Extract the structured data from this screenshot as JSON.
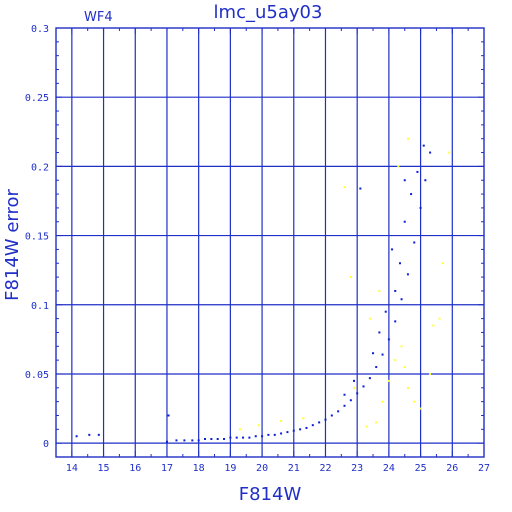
{
  "colors": {
    "axis": "#1f2fc7",
    "primary_points": "#0b1fd6",
    "secondary_points": "#ffff33"
  },
  "chart_data": {
    "type": "scatter",
    "title": "lmc_u5ay03",
    "subtitle": "WF4",
    "xlabel": "F814W",
    "ylabel": "F814W error",
    "xlim": [
      13.5,
      27
    ],
    "ylim": [
      -0.01,
      0.3
    ],
    "grid": true,
    "x_ticks": [
      14,
      15,
      16,
      17,
      18,
      19,
      20,
      21,
      22,
      23,
      24,
      25,
      26,
      27
    ],
    "y_ticks": [
      0,
      0.05,
      0.1,
      0.15,
      0.2,
      0.25,
      0.3
    ],
    "series": [
      {
        "color": "#0b1fd6",
        "points": [
          [
            14.15,
            0.005
          ],
          [
            14.55,
            0.006
          ],
          [
            14.85,
            0.006
          ],
          [
            17.05,
            0.02
          ],
          [
            17.0,
            0.001
          ],
          [
            17.3,
            0.002
          ],
          [
            17.55,
            0.002
          ],
          [
            17.8,
            0.002
          ],
          [
            18.0,
            0.002
          ],
          [
            18.2,
            0.003
          ],
          [
            18.4,
            0.003
          ],
          [
            18.6,
            0.003
          ],
          [
            18.8,
            0.003
          ],
          [
            19.0,
            0.004
          ],
          [
            19.2,
            0.004
          ],
          [
            19.4,
            0.004
          ],
          [
            19.6,
            0.004
          ],
          [
            19.8,
            0.005
          ],
          [
            20.0,
            0.005
          ],
          [
            20.2,
            0.006
          ],
          [
            20.4,
            0.006
          ],
          [
            20.6,
            0.007
          ],
          [
            20.8,
            0.008
          ],
          [
            21.0,
            0.009
          ],
          [
            21.2,
            0.01
          ],
          [
            21.4,
            0.011
          ],
          [
            21.6,
            0.013
          ],
          [
            21.8,
            0.015
          ],
          [
            22.0,
            0.017
          ],
          [
            22.2,
            0.02
          ],
          [
            22.4,
            0.023
          ],
          [
            22.6,
            0.027
          ],
          [
            22.8,
            0.031
          ],
          [
            23.0,
            0.036
          ],
          [
            23.2,
            0.041
          ],
          [
            23.4,
            0.047
          ],
          [
            23.6,
            0.055
          ],
          [
            23.8,
            0.064
          ],
          [
            24.0,
            0.075
          ],
          [
            24.2,
            0.088
          ],
          [
            24.4,
            0.104
          ],
          [
            24.6,
            0.122
          ],
          [
            24.8,
            0.145
          ],
          [
            25.0,
            0.17
          ],
          [
            25.15,
            0.19
          ],
          [
            25.3,
            0.21
          ],
          [
            23.1,
            0.184
          ],
          [
            24.9,
            0.196
          ],
          [
            24.7,
            0.18
          ],
          [
            24.5,
            0.16
          ],
          [
            24.35,
            0.13
          ],
          [
            24.2,
            0.11
          ],
          [
            23.9,
            0.095
          ],
          [
            23.7,
            0.08
          ],
          [
            23.5,
            0.065
          ],
          [
            22.9,
            0.045
          ],
          [
            22.6,
            0.035
          ],
          [
            24.1,
            0.14
          ],
          [
            24.5,
            0.19
          ],
          [
            25.1,
            0.215
          ]
        ]
      },
      {
        "color": "#ffff33",
        "points": [
          [
            19.3,
            0.01
          ],
          [
            19.9,
            0.013
          ],
          [
            20.6,
            0.016
          ],
          [
            21.3,
            0.018
          ],
          [
            22.6,
            0.185
          ],
          [
            22.8,
            0.12
          ],
          [
            22.9,
            0.04
          ],
          [
            23.3,
            0.012
          ],
          [
            23.6,
            0.015
          ],
          [
            23.8,
            0.03
          ],
          [
            24.0,
            0.045
          ],
          [
            24.2,
            0.06
          ],
          [
            24.4,
            0.07
          ],
          [
            24.6,
            0.04
          ],
          [
            24.8,
            0.03
          ],
          [
            25.0,
            0.025
          ],
          [
            25.3,
            0.05
          ],
          [
            25.6,
            0.09
          ],
          [
            25.7,
            0.13
          ],
          [
            25.9,
            0.21
          ],
          [
            24.3,
            0.2
          ],
          [
            24.6,
            0.22
          ],
          [
            23.4,
            0.09
          ],
          [
            23.7,
            0.11
          ],
          [
            25.4,
            0.085
          ],
          [
            24.5,
            0.055
          ]
        ]
      }
    ]
  }
}
